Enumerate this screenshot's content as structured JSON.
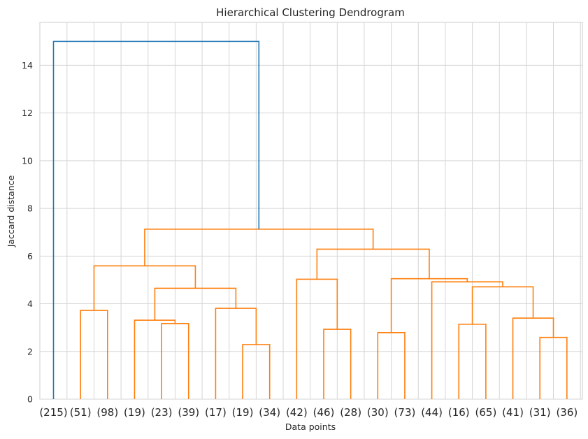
{
  "chart_data": {
    "type": "dendrogram",
    "title": "Hierarchical Clustering Dendrogram",
    "xlabel": "Data points",
    "ylabel": "Jaccard distance",
    "ylim": [
      0,
      15.8
    ],
    "yticks": [
      0,
      2,
      4,
      6,
      8,
      10,
      12,
      14
    ],
    "grid": true,
    "leaf_labels": [
      "(215)",
      "(51)",
      "(98)",
      "(19)",
      "(23)",
      "(39)",
      "(17)",
      "(19)",
      "(34)",
      "(42)",
      "(46)",
      "(28)",
      "(30)",
      "(73)",
      "(44)",
      "(16)",
      "(65)",
      "(41)",
      "(31)",
      "(36)"
    ],
    "merges": [
      {
        "left": 1,
        "right": 2,
        "height": 3.72,
        "color": "#ff7f0e"
      },
      {
        "left": 4,
        "right": 5,
        "height": 3.17,
        "color": "#ff7f0e"
      },
      {
        "left": 3,
        "right": "m1",
        "height": 3.31,
        "color": "#ff7f0e"
      },
      {
        "left": 7,
        "right": 8,
        "height": 2.29,
        "color": "#ff7f0e"
      },
      {
        "left": 6,
        "right": "m3",
        "height": 3.81,
        "color": "#ff7f0e"
      },
      {
        "left": "m2",
        "right": "m4",
        "height": 4.65,
        "color": "#ff7f0e"
      },
      {
        "left": "m0",
        "right": "m5",
        "height": 5.59,
        "color": "#ff7f0e"
      },
      {
        "left": 10,
        "right": 11,
        "height": 2.93,
        "color": "#ff7f0e"
      },
      {
        "left": 9,
        "right": "m7",
        "height": 5.03,
        "color": "#ff7f0e"
      },
      {
        "left": 12,
        "right": 13,
        "height": 2.79,
        "color": "#ff7f0e"
      },
      {
        "left": 15,
        "right": 16,
        "height": 3.14,
        "color": "#ff7f0e"
      },
      {
        "left": 18,
        "right": 19,
        "height": 2.59,
        "color": "#ff7f0e"
      },
      {
        "left": 17,
        "right": "m11",
        "height": 3.4,
        "color": "#ff7f0e"
      },
      {
        "left": "m10",
        "right": "m12",
        "height": 4.71,
        "color": "#ff7f0e"
      },
      {
        "left": 14,
        "right": "m13",
        "height": 4.92,
        "color": "#ff7f0e"
      },
      {
        "left": "m9",
        "right": "m14",
        "height": 5.05,
        "color": "#ff7f0e"
      },
      {
        "left": "m8",
        "right": "m15",
        "height": 6.29,
        "color": "#ff7f0e"
      },
      {
        "left": "m6",
        "right": "m16",
        "height": 7.13,
        "color": "#ff7f0e"
      },
      {
        "left": 0,
        "right": "m17",
        "height": 15.0,
        "color": "#1f77b4"
      }
    ]
  }
}
